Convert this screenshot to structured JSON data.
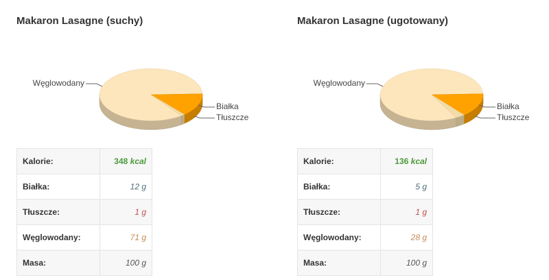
{
  "chart_data": [
    {
      "type": "pie",
      "title": "Makaron Lasagne (suchy)",
      "categories": [
        "Węglowodany",
        "Białka",
        "Tłuszcze"
      ],
      "values": [
        71,
        12,
        1
      ],
      "colors": [
        "#fde6bb",
        "#ffa200",
        "#f3dca8"
      ]
    },
    {
      "type": "pie",
      "title": "Makaron Lasagne (ugotowany)",
      "categories": [
        "Węglowodany",
        "Białka",
        "Tłuszcze"
      ],
      "values": [
        28,
        5,
        1
      ],
      "colors": [
        "#fde6bb",
        "#ffa200",
        "#f3dca8"
      ]
    }
  ],
  "tables": [
    {
      "rows": [
        {
          "label": "Kalorie:",
          "value": "348",
          "unit": "kcal",
          "color": "#4d9a3b"
        },
        {
          "label": "Białka:",
          "value": "12 g",
          "color": "#4f6f7c"
        },
        {
          "label": "Tłuszcze:",
          "value": "1 g",
          "color": "#c0504d"
        },
        {
          "label": "Węglowodany:",
          "value": "71 g",
          "color": "#c98a52"
        },
        {
          "label": "Masa:",
          "value": "100 g",
          "color": "#555555"
        }
      ]
    },
    {
      "rows": [
        {
          "label": "Kalorie:",
          "value": "136",
          "unit": "kcal",
          "color": "#4d9a3b"
        },
        {
          "label": "Białka:",
          "value": "5 g",
          "color": "#4f6f7c"
        },
        {
          "label": "Tłuszcze:",
          "value": "1 g",
          "color": "#c0504d"
        },
        {
          "label": "Węglowodany:",
          "value": "28 g",
          "color": "#c98a52"
        },
        {
          "label": "Masa:",
          "value": "100 g",
          "color": "#555555"
        }
      ]
    }
  ]
}
